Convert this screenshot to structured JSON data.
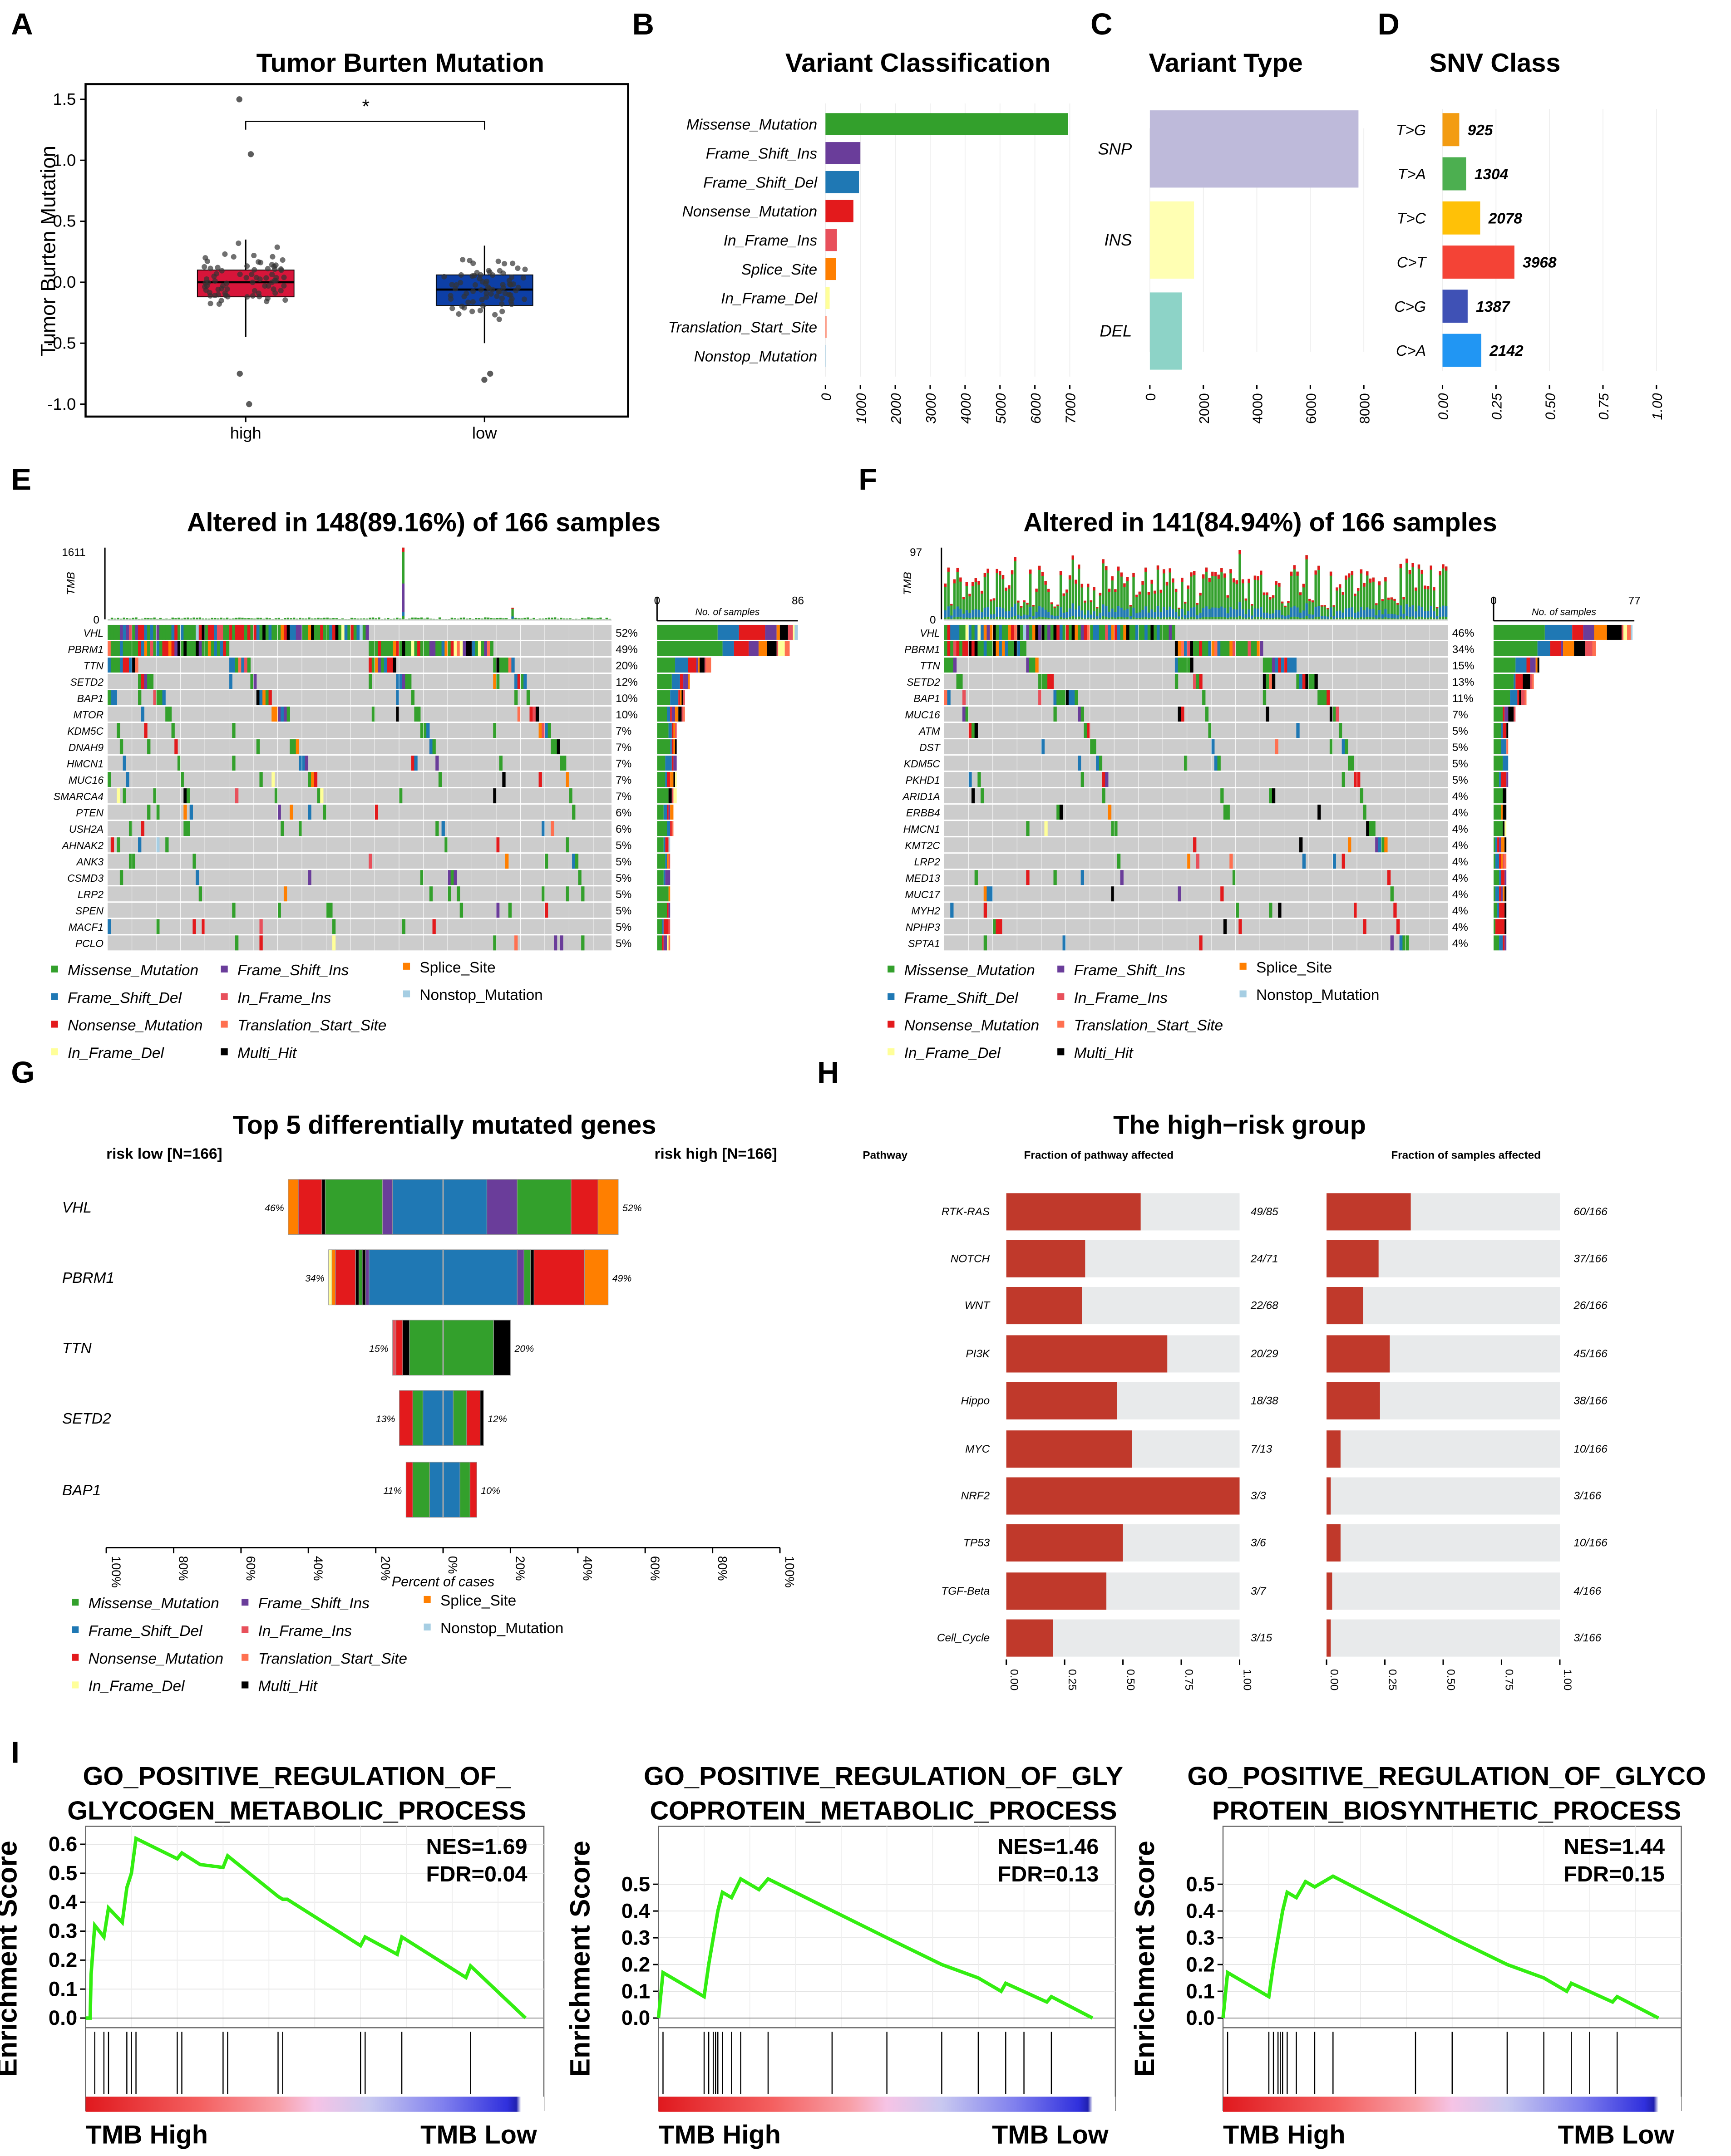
{
  "panel_labels": [
    "A",
    "B",
    "C",
    "D",
    "E",
    "F",
    "G",
    "H",
    "I"
  ],
  "colors": {
    "Missense_Mutation": "#33a02c",
    "Frame_Shift_Ins": "#6a3d9a",
    "Splice_Site": "#ff7f00",
    "Frame_Shift_Del": "#1f78b4",
    "In_Frame_Ins": "#e8505b",
    "Nonstop_Mutation": "#a6cee3",
    "Nonsense_Mutation": "#e31a1c",
    "Translation_Start_Site": "#ff7050",
    "In_Frame_Del": "#ffff99",
    "Multi_Hit": "#000000",
    "high_box": "#d7153a",
    "low_box": "#0d3fa6",
    "pathway_bar": "#c0392b",
    "pathway_bg": "#e8eaeb",
    "gsea_curve": "#33ee11"
  },
  "legend": [
    {
      "key": "Missense_Mutation",
      "label": "Missense_Mutation"
    },
    {
      "key": "Frame_Shift_Del",
      "label": "Frame_Shift_Del"
    },
    {
      "key": "Nonsense_Mutation",
      "label": "Nonsense_Mutation"
    },
    {
      "key": "In_Frame_Del",
      "label": "In_Frame_Del"
    },
    {
      "key": "Frame_Shift_Ins",
      "label": "Frame_Shift_Ins"
    },
    {
      "key": "In_Frame_Ins",
      "label": "In_Frame_Ins"
    },
    {
      "key": "Translation_Start_Site",
      "label": "Translation_Start_Site"
    },
    {
      "key": "Multi_Hit",
      "label": "Multi_Hit"
    },
    {
      "key": "Splice_Site",
      "label": "Splice_Site"
    },
    {
      "key": "Nonstop_Mutation",
      "label": "Nonstop_Mutation"
    }
  ],
  "chart_data": [
    {
      "type": "box",
      "title": "Tumor Burten Mutation",
      "ylabel": "Tumor Burten Mutation",
      "ylim": [
        -1.1,
        1.6
      ],
      "yticks": [
        {
          "v": 1.5,
          "label": "1.5"
        },
        {
          "v": 1.0,
          "label": "1.0"
        },
        {
          "v": 0.5,
          "label": "0.5"
        },
        {
          "v": 0.0,
          "label": "0.0"
        },
        {
          "v": -0.5,
          "label": "-0.5"
        },
        {
          "v": -1.0,
          "label": "-1.0"
        }
      ],
      "significance": "*",
      "groups": [
        {
          "label": "high",
          "q1": -0.12,
          "median": 0.0,
          "q3": 0.1,
          "wmin": -0.45,
          "wmax": 0.35,
          "outliers": [
            1.5,
            1.05,
            -0.75,
            -1.0
          ]
        },
        {
          "label": "low",
          "q1": -0.19,
          "median": -0.06,
          "q3": 0.06,
          "wmin": -0.5,
          "wmax": 0.3,
          "outliers": [
            -0.8,
            -0.75
          ]
        }
      ]
    },
    {
      "type": "bar",
      "title": "Variant Classification",
      "categories": [
        "Missense_Mutation",
        "Frame_Shift_Ins",
        "Frame_Shift_Del",
        "Nonsense_Mutation",
        "In_Frame_Ins",
        "Splice_Site",
        "In_Frame_Del",
        "Translation_Start_Site",
        "Nonstop_Mutation"
      ],
      "values": [
        6950,
        1000,
        960,
        800,
        330,
        300,
        120,
        30,
        10
      ],
      "xlim": [
        0,
        7000
      ],
      "xticks": [
        "0",
        "1000",
        "2000",
        "3000",
        "4000",
        "5000",
        "6000",
        "7000"
      ]
    },
    {
      "type": "bar",
      "title": "Variant Type",
      "categories": [
        "SNP",
        "INS",
        "DEL"
      ],
      "values": [
        7800,
        1650,
        1200
      ],
      "bar_colors": [
        "#bebada",
        "#ffffb3",
        "#8dd3c7"
      ],
      "xlim": [
        0,
        8000
      ],
      "xticks": [
        "0",
        "2000",
        "4000",
        "6000",
        "8000"
      ]
    },
    {
      "type": "bar",
      "title": "SNV Class",
      "categories": [
        "T>G",
        "T>A",
        "T>C",
        "C>T",
        "C>G",
        "C>A"
      ],
      "values": [
        925,
        1304,
        2078,
        3968,
        1387,
        2142
      ],
      "value_labels": [
        "925",
        "1304",
        "2078",
        "3968",
        "1387",
        "2142"
      ],
      "bar_colors": [
        "#f39c12",
        "#4caf50",
        "#ffc107",
        "#f44336",
        "#3f51b5",
        "#2196f3"
      ],
      "xlim": [
        0,
        1
      ],
      "xticks": [
        "0.00",
        "0.25",
        "0.50",
        "0.75",
        "1.00"
      ]
    },
    {
      "type": "heatmap",
      "title": "Altered in 148(89.16%) of 166 samples",
      "tmb_label": "TMB",
      "tmb_max": "1611",
      "tmb_min": "0",
      "samples": 166,
      "side_axis": {
        "min": "0",
        "max": "86",
        "label": "No. of samples"
      },
      "genes": [
        "VHL",
        "PBRM1",
        "TTN",
        "SETD2",
        "BAP1",
        "MTOR",
        "KDM5C",
        "DNAH9",
        "HMCN1",
        "MUC16",
        "SMARCA4",
        "PTEN",
        "USH2A",
        "AHNAK2",
        "ANK3",
        "CSMD3",
        "LRP2",
        "SPEN",
        "MACF1",
        "PCLO"
      ],
      "percent_labels": [
        "52%",
        "49%",
        "20%",
        "12%",
        "10%",
        "10%",
        "7%",
        "7%",
        "7%",
        "7%",
        "7%",
        "6%",
        "6%",
        "5%",
        "5%",
        "5%",
        "5%",
        "5%",
        "5%",
        "5%"
      ],
      "percents": [
        52,
        49,
        20,
        12,
        10,
        10,
        7,
        7,
        7,
        7,
        7,
        6,
        6,
        5,
        5,
        5,
        5,
        5,
        5,
        5
      ]
    },
    {
      "type": "heatmap",
      "title": "Altered in 141(84.94%) of 166 samples",
      "tmb_label": "TMB",
      "tmb_max": "97",
      "tmb_min": "0",
      "samples": 166,
      "side_axis": {
        "min": "0",
        "max": "77",
        "label": "No. of samples"
      },
      "genes": [
        "VHL",
        "PBRM1",
        "TTN",
        "SETD2",
        "BAP1",
        "MUC16",
        "ATM",
        "DST",
        "KDM5C",
        "PKHD1",
        "ARID1A",
        "ERBB4",
        "HMCN1",
        "KMT2C",
        "LRP2",
        "MED13",
        "MUC17",
        "MYH2",
        "NPHP3",
        "SPTA1"
      ],
      "percent_labels": [
        "46%",
        "34%",
        "15%",
        "13%",
        "11%",
        "7%",
        "5%",
        "5%",
        "5%",
        "5%",
        "4%",
        "4%",
        "4%",
        "4%",
        "4%",
        "4%",
        "4%",
        "4%",
        "4%",
        "4%"
      ],
      "percents": [
        46,
        34,
        15,
        13,
        11,
        7,
        5,
        5,
        5,
        5,
        4,
        4,
        4,
        4,
        4,
        4,
        4,
        4,
        4,
        4
      ]
    },
    {
      "type": "bar",
      "title": "Top 5 differentially mutated genes",
      "left_group": "risk low [N=166]",
      "right_group": "risk high [N=166]",
      "xlabel": "Percent of cases",
      "xticks": [
        "100%",
        "80%",
        "60%",
        "40%",
        "20%",
        "0%",
        "20%",
        "40%",
        "60%",
        "80%",
        "100%"
      ],
      "genes": [
        {
          "gene": "VHL",
          "left_pct": 46,
          "right_pct": 52,
          "left_label": "46%",
          "right_label": "52%",
          "left": [
            [
              "Frame_Shift_Del",
              15
            ],
            [
              "Frame_Shift_Ins",
              3
            ],
            [
              "Missense_Mutation",
              17
            ],
            [
              "Multi_Hit",
              1
            ],
            [
              "Nonsense_Mutation",
              7
            ],
            [
              "Splice_Site",
              3
            ]
          ],
          "right": [
            [
              "Frame_Shift_Del",
              13
            ],
            [
              "Frame_Shift_Ins",
              9
            ],
            [
              "Missense_Mutation",
              16
            ],
            [
              "Nonsense_Mutation",
              8
            ],
            [
              "Splice_Site",
              6
            ]
          ]
        },
        {
          "gene": "PBRM1",
          "left_pct": 34,
          "right_pct": 49,
          "left_label": "34%",
          "right_label": "49%",
          "left": [
            [
              "Frame_Shift_Del",
              22
            ],
            [
              "Frame_Shift_Ins",
              1
            ],
            [
              "Multi_Hit",
              1
            ],
            [
              "Missense_Mutation",
              1
            ],
            [
              "Multi_Hit",
              1
            ],
            [
              "Nonsense_Mutation",
              6
            ],
            [
              "Splice_Site",
              1
            ],
            [
              "In_Frame_Del",
              1
            ]
          ],
          "right": [
            [
              "Frame_Shift_Del",
              22
            ],
            [
              "Frame_Shift_Ins",
              2
            ],
            [
              "Missense_Mutation",
              2
            ],
            [
              "Multi_Hit",
              1
            ],
            [
              "Nonsense_Mutation",
              15
            ],
            [
              "Splice_Site",
              7
            ]
          ]
        },
        {
          "gene": "TTN",
          "left_pct": 15,
          "right_pct": 20,
          "left_label": "15%",
          "right_label": "20%",
          "left": [
            [
              "Missense_Mutation",
              10
            ],
            [
              "Multi_Hit",
              2
            ],
            [
              "Nonsense_Mutation",
              2
            ],
            [
              "In_Frame_Ins",
              1
            ]
          ],
          "right": [
            [
              "Missense_Mutation",
              15
            ],
            [
              "Multi_Hit",
              5
            ]
          ]
        },
        {
          "gene": "SETD2",
          "left_pct": 13,
          "right_pct": 12,
          "left_label": "13%",
          "right_label": "12%",
          "left": [
            [
              "Frame_Shift_Del",
              6
            ],
            [
              "Missense_Mutation",
              3
            ],
            [
              "Nonsense_Mutation",
              4
            ]
          ],
          "right": [
            [
              "Frame_Shift_Del",
              3
            ],
            [
              "Missense_Mutation",
              4
            ],
            [
              "Nonsense_Mutation",
              4
            ],
            [
              "Multi_Hit",
              1
            ]
          ]
        },
        {
          "gene": "BAP1",
          "left_pct": 11,
          "right_pct": 10,
          "left_label": "11%",
          "right_label": "10%",
          "left": [
            [
              "Frame_Shift_Del",
              4
            ],
            [
              "Missense_Mutation",
              5
            ],
            [
              "Nonsense_Mutation",
              2
            ]
          ],
          "right": [
            [
              "Frame_Shift_Del",
              5
            ],
            [
              "Missense_Mutation",
              3
            ],
            [
              "Nonsense_Mutation",
              2
            ]
          ]
        }
      ]
    },
    {
      "type": "bar",
      "title": "The high−risk group",
      "col_pathway": "Pathway",
      "col_fraction_pathway": "Fraction of pathway affected",
      "col_fraction_samples": "Fraction of samples affected",
      "xticks": [
        "0.00",
        "0.25",
        "0.50",
        "0.75",
        "1.00"
      ],
      "rows": [
        {
          "pathway": "RTK-RAS",
          "pw_label": "49/85",
          "pw_frac": 0.576,
          "s_label": "60/166",
          "s_frac": 0.361
        },
        {
          "pathway": "NOTCH",
          "pw_label": "24/71",
          "pw_frac": 0.338,
          "s_label": "37/166",
          "s_frac": 0.223
        },
        {
          "pathway": "WNT",
          "pw_label": "22/68",
          "pw_frac": 0.324,
          "s_label": "26/166",
          "s_frac": 0.157
        },
        {
          "pathway": "PI3K",
          "pw_label": "20/29",
          "pw_frac": 0.69,
          "s_label": "45/166",
          "s_frac": 0.271
        },
        {
          "pathway": "Hippo",
          "pw_label": "18/38",
          "pw_frac": 0.474,
          "s_label": "38/166",
          "s_frac": 0.229
        },
        {
          "pathway": "MYC",
          "pw_label": "7/13",
          "pw_frac": 0.538,
          "s_label": "10/166",
          "s_frac": 0.06
        },
        {
          "pathway": "NRF2",
          "pw_label": "3/3",
          "pw_frac": 1.0,
          "s_label": "3/166",
          "s_frac": 0.018
        },
        {
          "pathway": "TP53",
          "pw_label": "3/6",
          "pw_frac": 0.5,
          "s_label": "10/166",
          "s_frac": 0.06
        },
        {
          "pathway": "TGF-Beta",
          "pw_label": "3/7",
          "pw_frac": 0.429,
          "s_label": "4/166",
          "s_frac": 0.024
        },
        {
          "pathway": "Cell_Cycle",
          "pw_label": "3/15",
          "pw_frac": 0.2,
          "s_label": "3/166",
          "s_frac": 0.018
        }
      ]
    },
    {
      "type": "line",
      "title_lines": [
        "GO_POSITIVE_REGULATION_OF_",
        "GLYCOGEN_METABOLIC_PROCESS"
      ],
      "ylabel": "Enrichment Score",
      "nes": "NES=1.69",
      "fdr": "FDR=0.04",
      "left_label": "TMB  High",
      "right_label": "TMB Low",
      "ylim": [
        0,
        0.65
      ],
      "yticks": [
        {
          "v": 0.0,
          "label": "0.0"
        },
        {
          "v": 0.1,
          "label": "0.1"
        },
        {
          "v": 0.2,
          "label": "0.2"
        },
        {
          "v": 0.3,
          "label": "0.3"
        },
        {
          "v": 0.4,
          "label": "0.4"
        },
        {
          "v": 0.5,
          "label": "0.5"
        },
        {
          "v": 0.6,
          "label": "0.6"
        }
      ],
      "x": [
        0,
        0.01,
        0.012,
        0.02,
        0.04,
        0.05,
        0.08,
        0.09,
        0.1,
        0.11,
        0.2,
        0.21,
        0.25,
        0.3,
        0.31,
        0.42,
        0.43,
        0.44,
        0.6,
        0.61,
        0.68,
        0.69,
        0.83,
        0.84,
        0.96
      ],
      "es": [
        0,
        0.0,
        0.15,
        0.32,
        0.28,
        0.38,
        0.33,
        0.45,
        0.5,
        0.62,
        0.55,
        0.57,
        0.53,
        0.52,
        0.56,
        0.42,
        0.41,
        0.41,
        0.25,
        0.28,
        0.22,
        0.28,
        0.14,
        0.18,
        0.0
      ],
      "hits": [
        0.02,
        0.04,
        0.05,
        0.09,
        0.1,
        0.11,
        0.2,
        0.21,
        0.3,
        0.31,
        0.42,
        0.43,
        0.6,
        0.61,
        0.69,
        0.84
      ]
    },
    {
      "type": "line",
      "title_lines": [
        "GO_POSITIVE_REGULATION_OF_GLY",
        "COPROTEIN_METABOLIC_PROCESS"
      ],
      "ylabel": "Enrichment Score",
      "nes": "NES=1.46",
      "fdr": "FDR=0.13",
      "left_label": "TMB  High",
      "right_label": "TMB Low",
      "ylim": [
        0,
        0.55
      ],
      "yticks": [
        {
          "v": 0.0,
          "label": "0.0"
        },
        {
          "v": 0.1,
          "label": "0.1"
        },
        {
          "v": 0.2,
          "label": "0.2"
        },
        {
          "v": 0.3,
          "label": "0.3"
        },
        {
          "v": 0.4,
          "label": "0.4"
        },
        {
          "v": 0.5,
          "label": "0.5"
        }
      ],
      "x": [
        0,
        0.01,
        0.1,
        0.11,
        0.12,
        0.13,
        0.14,
        0.16,
        0.18,
        0.22,
        0.24,
        0.5,
        0.62,
        0.7,
        0.75,
        0.76,
        0.85,
        0.86,
        0.95
      ],
      "es": [
        0,
        0.17,
        0.08,
        0.2,
        0.3,
        0.4,
        0.47,
        0.45,
        0.52,
        0.48,
        0.52,
        0.3,
        0.2,
        0.15,
        0.1,
        0.13,
        0.06,
        0.08,
        0.0
      ],
      "hits": [
        0.01,
        0.1,
        0.11,
        0.12,
        0.125,
        0.13,
        0.14,
        0.16,
        0.18,
        0.24,
        0.38,
        0.5,
        0.62,
        0.7,
        0.76,
        0.8,
        0.86
      ]
    },
    {
      "type": "line",
      "title_lines": [
        "GO_POSITIVE_REGULATION_OF_GLYCO",
        "PROTEIN_BIOSYNTHETIC_PROCESS"
      ],
      "ylabel": "Enrichment Score",
      "nes": "NES=1.44",
      "fdr": "FDR=0.15",
      "left_label": "TMB  High",
      "right_label": "TMB Low",
      "ylim": [
        0,
        0.55
      ],
      "yticks": [
        {
          "v": 0.0,
          "label": "0.0"
        },
        {
          "v": 0.1,
          "label": "0.1"
        },
        {
          "v": 0.2,
          "label": "0.2"
        },
        {
          "v": 0.3,
          "label": "0.3"
        },
        {
          "v": 0.4,
          "label": "0.4"
        },
        {
          "v": 0.5,
          "label": "0.5"
        }
      ],
      "x": [
        0,
        0.01,
        0.1,
        0.11,
        0.12,
        0.13,
        0.14,
        0.16,
        0.18,
        0.2,
        0.24,
        0.5,
        0.62,
        0.7,
        0.75,
        0.76,
        0.85,
        0.86,
        0.95
      ],
      "es": [
        0,
        0.17,
        0.08,
        0.2,
        0.3,
        0.4,
        0.47,
        0.45,
        0.51,
        0.49,
        0.53,
        0.3,
        0.2,
        0.15,
        0.1,
        0.13,
        0.06,
        0.08,
        0.0
      ],
      "hits": [
        0.01,
        0.1,
        0.11,
        0.12,
        0.125,
        0.13,
        0.14,
        0.16,
        0.2,
        0.24,
        0.42,
        0.5,
        0.62,
        0.7,
        0.76,
        0.8,
        0.86
      ]
    }
  ]
}
